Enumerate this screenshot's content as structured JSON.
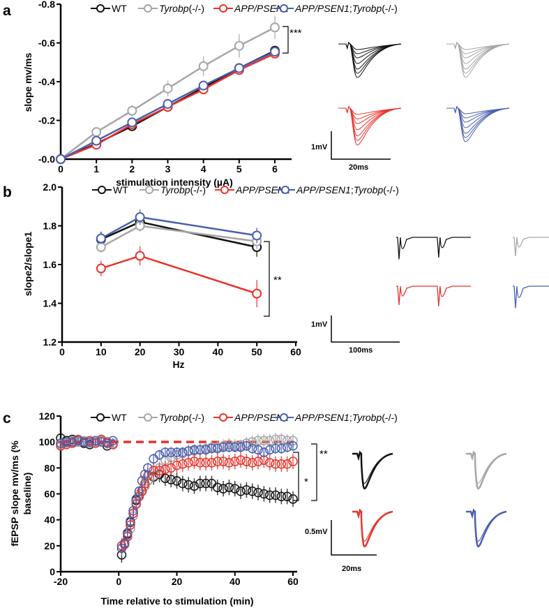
{
  "legend": [
    {
      "name": "WT",
      "parts": [
        {
          "t": "WT",
          "i": false
        }
      ],
      "color": "#111111"
    },
    {
      "name": "Tyrobp(-/-)",
      "parts": [
        {
          "t": "Tyrobp",
          "i": true
        },
        {
          "t": "(-/-)",
          "i": false
        }
      ],
      "color": "#a6a6a6"
    },
    {
      "name": "APP/PSEN1",
      "parts": [
        {
          "t": "APP/PSEN1",
          "i": true
        }
      ],
      "color": "#e8332c"
    },
    {
      "name": "APP/PSEN1;Tyrobp(-/-)",
      "parts": [
        {
          "t": "APP/PSEN1",
          "i": true
        },
        {
          "t": ";",
          "i": false
        },
        {
          "t": "Tyrobp",
          "i": true
        },
        {
          "t": "(-/-)",
          "i": false
        }
      ],
      "color": "#4a5fb0"
    }
  ],
  "chart_data": [
    {
      "panel": "a",
      "type": "line",
      "xlabel": "stimulation intensity (µA)",
      "ylabel": "slope mv/ms",
      "xlim": [
        0,
        6.5
      ],
      "ylim": [
        0,
        -0.8
      ],
      "xticks": [
        0,
        1,
        2,
        3,
        4,
        5,
        6
      ],
      "yticks": [
        0,
        -0.2,
        -0.4,
        -0.6,
        -0.8
      ],
      "ytick_labels": [
        "-0.0",
        "-0.2",
        "-0.4",
        "-0.6",
        "-0.8"
      ],
      "x": [
        0,
        1,
        2,
        3,
        4,
        5,
        6
      ],
      "series": [
        {
          "name": "WT",
          "values": [
            0,
            -0.08,
            -0.17,
            -0.27,
            -0.37,
            -0.47,
            -0.56
          ],
          "err": [
            0,
            0.01,
            0.01,
            0.01,
            0.01,
            0.01,
            0.01
          ]
        },
        {
          "name": "Tyrobp(-/-)",
          "values": [
            0,
            -0.14,
            -0.25,
            -0.365,
            -0.48,
            -0.585,
            -0.68
          ],
          "err": [
            0,
            0.01,
            0.03,
            0.04,
            0.05,
            0.06,
            0.06
          ]
        },
        {
          "name": "APP/PSEN1",
          "values": [
            0,
            -0.075,
            -0.18,
            -0.27,
            -0.36,
            -0.46,
            -0.545
          ],
          "err": [
            0,
            0.01,
            0.01,
            0.01,
            0.01,
            0.01,
            0.015
          ]
        },
        {
          "name": "APP/PSEN1;Tyrobp(-/-)",
          "values": [
            0,
            -0.095,
            -0.19,
            -0.285,
            -0.38,
            -0.47,
            -0.555
          ],
          "err": [
            0,
            0.01,
            0.01,
            0.01,
            0.01,
            0.01,
            0.01
          ]
        }
      ],
      "significance": "***",
      "scalebar": {
        "v": "1mV",
        "h": "20ms"
      }
    },
    {
      "panel": "b",
      "type": "line",
      "xlabel": "Hz",
      "ylabel": "slope2/slope1",
      "xlim": [
        0,
        60
      ],
      "ylim": [
        1.2,
        2.0
      ],
      "xticks": [
        0,
        10,
        20,
        30,
        40,
        50,
        60
      ],
      "yticks": [
        1.2,
        1.4,
        1.6,
        1.8,
        2.0
      ],
      "ytick_labels": [
        "1.2",
        "1.4",
        "1.6",
        "1.8",
        "2.0"
      ],
      "x": [
        10,
        20,
        50
      ],
      "series": [
        {
          "name": "WT",
          "values": [
            1.73,
            1.82,
            1.69
          ],
          "err": [
            0.04,
            0.04,
            0.05
          ]
        },
        {
          "name": "Tyrobp(-/-)",
          "values": [
            1.69,
            1.8,
            1.72
          ],
          "err": [
            0.03,
            0.03,
            0.04
          ]
        },
        {
          "name": "APP/PSEN1",
          "values": [
            1.58,
            1.645,
            1.45
          ],
          "err": [
            0.04,
            0.05,
            0.07
          ]
        },
        {
          "name": "APP/PSEN1;Tyrobp(-/-)",
          "values": [
            1.735,
            1.845,
            1.75
          ],
          "err": [
            0.03,
            0.04,
            0.04
          ]
        }
      ],
      "significance": "**",
      "scalebar": {
        "v": "1mV",
        "h": "100ms"
      }
    },
    {
      "panel": "c",
      "type": "scatter",
      "xlabel": "Time relative to stimulation (min)",
      "ylabel": "fEPSP slope mv/ms (% baseline)",
      "ylabel_lines": [
        "fEPSP slope mv/ms (%",
        "baseline)"
      ],
      "xlim": [
        -20,
        60
      ],
      "ylim": [
        0,
        120
      ],
      "xticks": [
        -20,
        0,
        20,
        40,
        60
      ],
      "yticks": [
        0,
        20,
        40,
        60,
        80,
        100,
        120
      ],
      "ytick_labels": [
        "0",
        "20",
        "40",
        "60",
        "80",
        "100",
        "120"
      ],
      "baseline_ref": 100,
      "x": [
        -20,
        -18,
        -16,
        -14,
        -12,
        -10,
        -8,
        -6,
        -4,
        -2,
        1,
        2,
        3,
        4,
        5,
        6,
        7,
        8,
        9,
        10,
        12,
        14,
        16,
        18,
        20,
        22,
        24,
        26,
        28,
        30,
        32,
        34,
        36,
        38,
        40,
        42,
        44,
        46,
        48,
        50,
        52,
        54,
        56,
        58,
        60
      ],
      "series": [
        {
          "name": "WT",
          "err": 6,
          "values": [
            103,
            101,
            102,
            100,
            99,
            98,
            100,
            101,
            97,
            98,
            13,
            22,
            29,
            38,
            45,
            55,
            58,
            62,
            66,
            70,
            73,
            75,
            72,
            71,
            70,
            68,
            67,
            66,
            68,
            68,
            68,
            65,
            64,
            65,
            64,
            62,
            63,
            62,
            61,
            60,
            59,
            59,
            58,
            58,
            56
          ]
        },
        {
          "name": "Tyrobp(-/-)",
          "err": 5,
          "values": [
            98,
            99,
            101,
            100,
            101,
            99,
            100,
            101,
            100,
            99,
            18,
            21,
            28,
            33,
            43,
            53,
            60,
            63,
            66,
            70,
            74,
            80,
            86,
            88,
            90,
            91,
            93,
            93,
            94,
            95,
            96,
            96,
            97,
            98,
            97,
            97,
            99,
            100,
            101,
            101,
            101,
            102,
            102,
            101,
            101
          ]
        },
        {
          "name": "APP/PSEN1",
          "err": 6,
          "values": [
            97,
            98,
            99,
            102,
            100,
            101,
            99,
            102,
            100,
            98,
            20,
            21,
            27,
            36,
            45,
            52,
            58,
            62,
            68,
            74,
            78,
            78,
            79,
            80,
            82,
            83,
            84,
            85,
            84,
            84,
            84,
            85,
            85,
            84,
            85,
            86,
            85,
            84,
            85,
            86,
            84,
            83,
            83,
            83,
            85
          ]
        },
        {
          "name": "APP/PSEN1;Tyrobp(-/-)",
          "err": 4,
          "values": [
            99,
            100,
            100,
            101,
            100,
            100,
            101,
            100,
            99,
            101,
            18,
            22,
            30,
            39,
            47,
            56,
            62,
            70,
            75,
            80,
            87,
            90,
            92,
            92,
            92,
            92,
            93,
            94,
            94,
            94,
            95,
            95,
            96,
            96,
            96,
            96,
            97,
            95,
            94,
            92,
            94,
            95,
            95,
            96,
            97
          ]
        }
      ],
      "significance": [
        "*",
        "**"
      ],
      "scalebar": {
        "v": "0.5mV",
        "h": "20ms"
      }
    }
  ]
}
